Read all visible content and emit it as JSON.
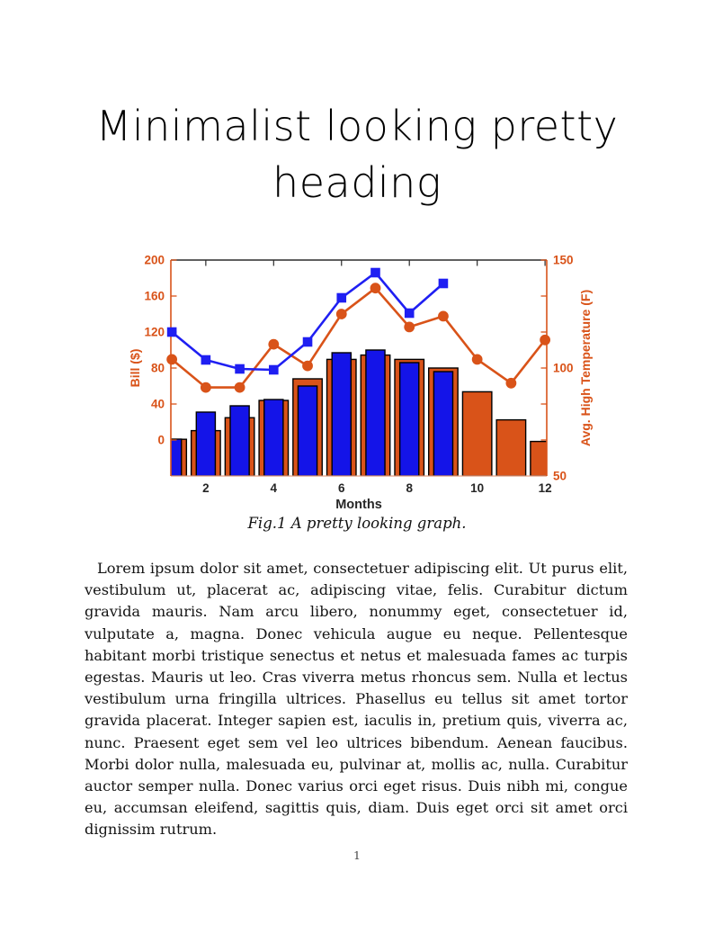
{
  "page": {
    "title_line1": "Minimalist looking pretty",
    "title_line2": "heading",
    "page_number": "1"
  },
  "figure": {
    "caption": "Fig.1 A pretty looking graph."
  },
  "body": {
    "paragraph": "Lorem ipsum dolor sit amet, consectetuer adipiscing elit. Ut purus elit, vestibulum ut, placerat ac, adipiscing vitae, felis. Curabitur dictum gravida mauris. Nam arcu libero, nonummy eget, consectetuer id, vulputate a, magna. Donec vehicula augue eu neque. Pellentesque habitant morbi tristique senectus et netus et malesuada fames ac turpis egestas. Mauris ut leo. Cras viverra metus rhoncus sem. Nulla et lectus vestibulum urna fringilla ultrices. Phasellus eu tellus sit amet tortor gravida placerat. Integer sapien est, iaculis in, pretium quis, viverra ac, nunc. Praesent eget sem vel leo ultrices bibendum. Aenean faucibus. Morbi dolor nulla, malesuada eu, pulvinar at, mollis ac, nulla. Curabitur auctor semper nulla. Donec varius orci eget risus. Duis nibh mi, congue eu, accumsan eleifend, sagittis quis, diam. Duis eget orci sit amet orci dignissim rutrum."
  },
  "chart_data": {
    "type": "bar",
    "subtype": "combo dual-y-axis bar+line (MATLAB style)",
    "x": [
      1,
      2,
      3,
      4,
      5,
      6,
      7,
      8,
      9,
      10,
      11,
      12
    ],
    "xlabel": "Months",
    "x_ticks": [
      2,
      4,
      6,
      8,
      10,
      12
    ],
    "xlim": [
      0.97,
      12.05
    ],
    "grid": false,
    "legend": "none",
    "left_axis": {
      "label": "Bill ($)",
      "ticks": [
        0,
        40,
        80,
        120,
        160,
        200
      ],
      "range": [
        -40,
        200
      ],
      "color": "#D95319"
    },
    "right_axis": {
      "label": "Avg. High Temperature (F)",
      "ticks": [
        50,
        100,
        150
      ],
      "range": [
        50,
        150
      ],
      "color": "#D95319"
    },
    "bars_baseline": "plot-bottom",
    "series": [
      {
        "name": "temperature-bars",
        "type": "bar",
        "axis": "right",
        "color": "#D95319",
        "bar_width": 0.86,
        "values": [
          67,
          71,
          77,
          85,
          95,
          104,
          106,
          104,
          100,
          89,
          76,
          66
        ]
      },
      {
        "name": "bill-bars",
        "type": "bar",
        "axis": "left",
        "color": "#1414E8",
        "bar_width": 0.56,
        "values": [
          1,
          31,
          38,
          45,
          60,
          97,
          100,
          86,
          76,
          null,
          null,
          null
        ]
      },
      {
        "name": "temperature-line",
        "type": "line",
        "axis": "right",
        "color": "#D95319",
        "marker": "circle",
        "values": [
          104,
          91,
          91,
          111,
          101,
          125,
          137,
          119,
          124,
          104,
          93,
          113
        ]
      },
      {
        "name": "bill-line",
        "type": "line",
        "axis": "left",
        "color": "#1F1FF2",
        "marker": "square",
        "values": [
          120,
          89,
          79,
          78,
          109,
          158,
          186,
          141,
          174,
          null,
          null,
          null
        ]
      }
    ],
    "style_colors": {
      "orange": "#D95319",
      "blue_bar": "#1414E8",
      "blue_line": "#1F1FF2",
      "axis_dark": "#2B2B2B",
      "bottom_spine": "#E3A183",
      "bar_outline": "#000000"
    }
  }
}
